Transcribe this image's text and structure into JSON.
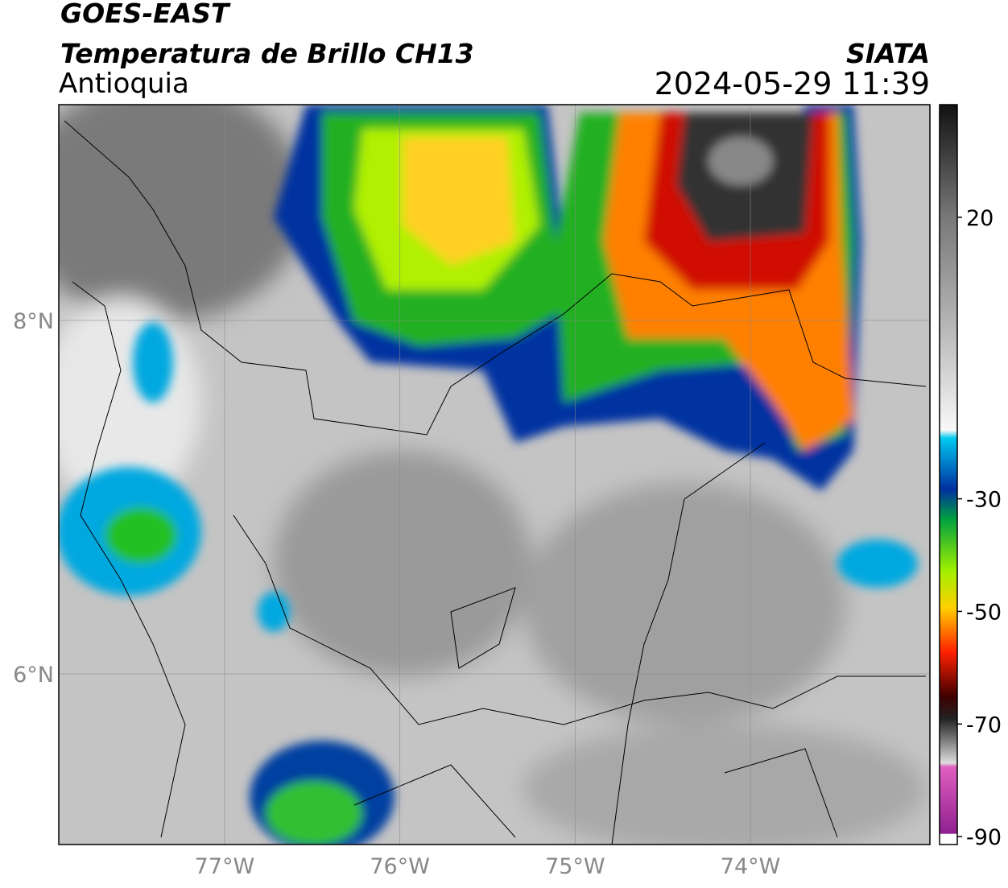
{
  "header": {
    "satellite": "GOES-EAST",
    "product": "Temperatura de Brillo CH13",
    "region": "Antioquia",
    "source": "SIATA",
    "datetime": "2024-05-29 11:39"
  },
  "map": {
    "xlim": [
      -77.946,
      -72.976
    ],
    "ylim": [
      5.034,
      9.221
    ],
    "lat_ticks": [
      {
        "value": 8,
        "label": "8°N"
      },
      {
        "value": 6,
        "label": "6°N"
      }
    ],
    "lon_ticks": [
      {
        "value": -77,
        "label": "77°W"
      },
      {
        "value": -76,
        "label": "76°W"
      },
      {
        "value": -75,
        "label": "75°W"
      },
      {
        "value": -74,
        "label": "74°W"
      }
    ]
  },
  "colorbar": {
    "lim": [
      -91.4,
      40
    ],
    "ticks": [
      20,
      -30,
      -50,
      -70,
      -90
    ]
  }
}
